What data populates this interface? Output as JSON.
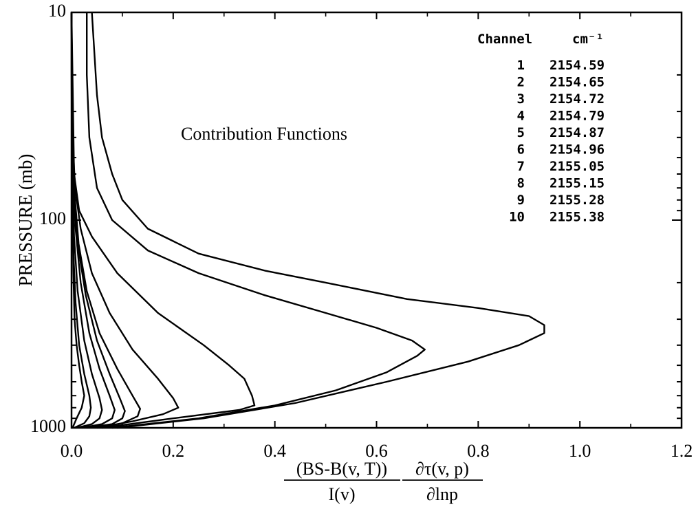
{
  "chart_data": {
    "type": "line",
    "title": "",
    "annotation": "Contribution Functions",
    "ylabel": "PRESSURE (mb)",
    "y_scale": "log",
    "y_inverted": true,
    "ylim": [
      1000,
      10
    ],
    "xlim": [
      0.0,
      1.2
    ],
    "x_ticks": [
      "0.0",
      "0.2",
      "0.4",
      "0.6",
      "0.8",
      "1.0",
      "1.2"
    ],
    "y_ticks": [
      "10",
      "100",
      "1000"
    ],
    "xlabel": {
      "numerator_1": "(BS-B(v, T))",
      "denominator_1": "I(v)",
      "numerator_2": "∂τ(v, p)",
      "denominator_2": "∂lnp"
    },
    "legend": {
      "header_channel": "Channel",
      "header_unit": "cm⁻¹",
      "placement": "top-right",
      "rows": [
        {
          "channel": "1",
          "wavenumber": "2154.59"
        },
        {
          "channel": "2",
          "wavenumber": "2154.65"
        },
        {
          "channel": "3",
          "wavenumber": "2154.72"
        },
        {
          "channel": "4",
          "wavenumber": "2154.79"
        },
        {
          "channel": "5",
          "wavenumber": "2154.87"
        },
        {
          "channel": "6",
          "wavenumber": "2154.96"
        },
        {
          "channel": "7",
          "wavenumber": "2155.05"
        },
        {
          "channel": "8",
          "wavenumber": "2155.15"
        },
        {
          "channel": "9",
          "wavenumber": "2155.28"
        },
        {
          "channel": "10",
          "wavenumber": "2155.38"
        }
      ]
    },
    "series": [
      {
        "points": [
          [
            0.002,
            1000
          ],
          [
            0.01,
            900
          ],
          [
            0.02,
            800
          ],
          [
            0.025,
            700
          ],
          [
            0.02,
            600
          ],
          [
            0.015,
            500
          ],
          [
            0.01,
            400
          ],
          [
            0.006,
            300
          ],
          [
            0.004,
            200
          ],
          [
            0.002,
            100
          ],
          [
            0.001,
            50
          ],
          [
            0.0,
            20
          ],
          [
            0.0,
            10
          ]
        ]
      },
      {
        "points": [
          [
            0.005,
            1000
          ],
          [
            0.025,
            950
          ],
          [
            0.035,
            880
          ],
          [
            0.038,
            800
          ],
          [
            0.035,
            700
          ],
          [
            0.025,
            550
          ],
          [
            0.015,
            400
          ],
          [
            0.008,
            250
          ],
          [
            0.004,
            150
          ],
          [
            0.002,
            80
          ],
          [
            0.001,
            30
          ],
          [
            0.0,
            10
          ]
        ]
      },
      {
        "points": [
          [
            0.01,
            1000
          ],
          [
            0.04,
            960
          ],
          [
            0.055,
            900
          ],
          [
            0.06,
            820
          ],
          [
            0.055,
            720
          ],
          [
            0.04,
            550
          ],
          [
            0.025,
            380
          ],
          [
            0.012,
            220
          ],
          [
            0.005,
            120
          ],
          [
            0.002,
            60
          ],
          [
            0.001,
            25
          ],
          [
            0.0,
            10
          ]
        ]
      },
      {
        "points": [
          [
            0.02,
            1000
          ],
          [
            0.06,
            960
          ],
          [
            0.08,
            900
          ],
          [
            0.085,
            820
          ],
          [
            0.075,
            700
          ],
          [
            0.055,
            520
          ],
          [
            0.035,
            350
          ],
          [
            0.018,
            200
          ],
          [
            0.008,
            110
          ],
          [
            0.003,
            60
          ],
          [
            0.001,
            25
          ],
          [
            0.0,
            10
          ]
        ]
      },
      {
        "points": [
          [
            0.03,
            1000
          ],
          [
            0.08,
            960
          ],
          [
            0.1,
            900
          ],
          [
            0.105,
            830
          ],
          [
            0.095,
            720
          ],
          [
            0.075,
            550
          ],
          [
            0.05,
            380
          ],
          [
            0.028,
            230
          ],
          [
            0.012,
            130
          ],
          [
            0.004,
            70
          ],
          [
            0.001,
            30
          ],
          [
            0.0,
            10
          ]
        ]
      },
      {
        "points": [
          [
            0.05,
            1000
          ],
          [
            0.1,
            950
          ],
          [
            0.13,
            880
          ],
          [
            0.135,
            810
          ],
          [
            0.12,
            700
          ],
          [
            0.09,
            520
          ],
          [
            0.055,
            350
          ],
          [
            0.03,
            220
          ],
          [
            0.014,
            130
          ],
          [
            0.005,
            70
          ],
          [
            0.002,
            40
          ],
          [
            0.0,
            10
          ]
        ]
      },
      {
        "points": [
          [
            0.05,
            1000
          ],
          [
            0.12,
            930
          ],
          [
            0.18,
            860
          ],
          [
            0.21,
            800
          ],
          [
            0.2,
            720
          ],
          [
            0.17,
            580
          ],
          [
            0.12,
            420
          ],
          [
            0.075,
            280
          ],
          [
            0.04,
            180
          ],
          [
            0.018,
            110
          ],
          [
            0.007,
            70
          ],
          [
            0.002,
            40
          ],
          [
            0.0,
            10
          ]
        ]
      },
      {
        "points": [
          [
            0.06,
            1000
          ],
          [
            0.2,
            900
          ],
          [
            0.33,
            820
          ],
          [
            0.36,
            780
          ],
          [
            0.355,
            700
          ],
          [
            0.34,
            580
          ],
          [
            0.31,
            500
          ],
          [
            0.26,
            400
          ],
          [
            0.17,
            280
          ],
          [
            0.09,
            180
          ],
          [
            0.04,
            120
          ],
          [
            0.015,
            90
          ],
          [
            0.005,
            60
          ],
          [
            0.0,
            10
          ]
        ]
      },
      {
        "points": [
          [
            0.08,
            1000
          ],
          [
            0.25,
            900
          ],
          [
            0.4,
            780
          ],
          [
            0.52,
            660
          ],
          [
            0.62,
            540
          ],
          [
            0.68,
            450
          ],
          [
            0.695,
            420
          ],
          [
            0.67,
            380
          ],
          [
            0.6,
            330
          ],
          [
            0.5,
            280
          ],
          [
            0.38,
            230
          ],
          [
            0.25,
            180
          ],
          [
            0.15,
            140
          ],
          [
            0.08,
            100
          ],
          [
            0.05,
            70
          ],
          [
            0.035,
            40
          ],
          [
            0.03,
            20
          ],
          [
            0.03,
            10
          ]
        ]
      },
      {
        "points": [
          [
            0.09,
            1000
          ],
          [
            0.26,
            900
          ],
          [
            0.44,
            760
          ],
          [
            0.62,
            600
          ],
          [
            0.78,
            480
          ],
          [
            0.88,
            400
          ],
          [
            0.93,
            350
          ],
          [
            0.93,
            320
          ],
          [
            0.9,
            290
          ],
          [
            0.8,
            265
          ],
          [
            0.66,
            240
          ],
          [
            0.5,
            200
          ],
          [
            0.38,
            175
          ],
          [
            0.25,
            145
          ],
          [
            0.15,
            110
          ],
          [
            0.1,
            80
          ],
          [
            0.08,
            60
          ],
          [
            0.06,
            40
          ],
          [
            0.05,
            25
          ],
          [
            0.04,
            10
          ]
        ]
      }
    ]
  }
}
